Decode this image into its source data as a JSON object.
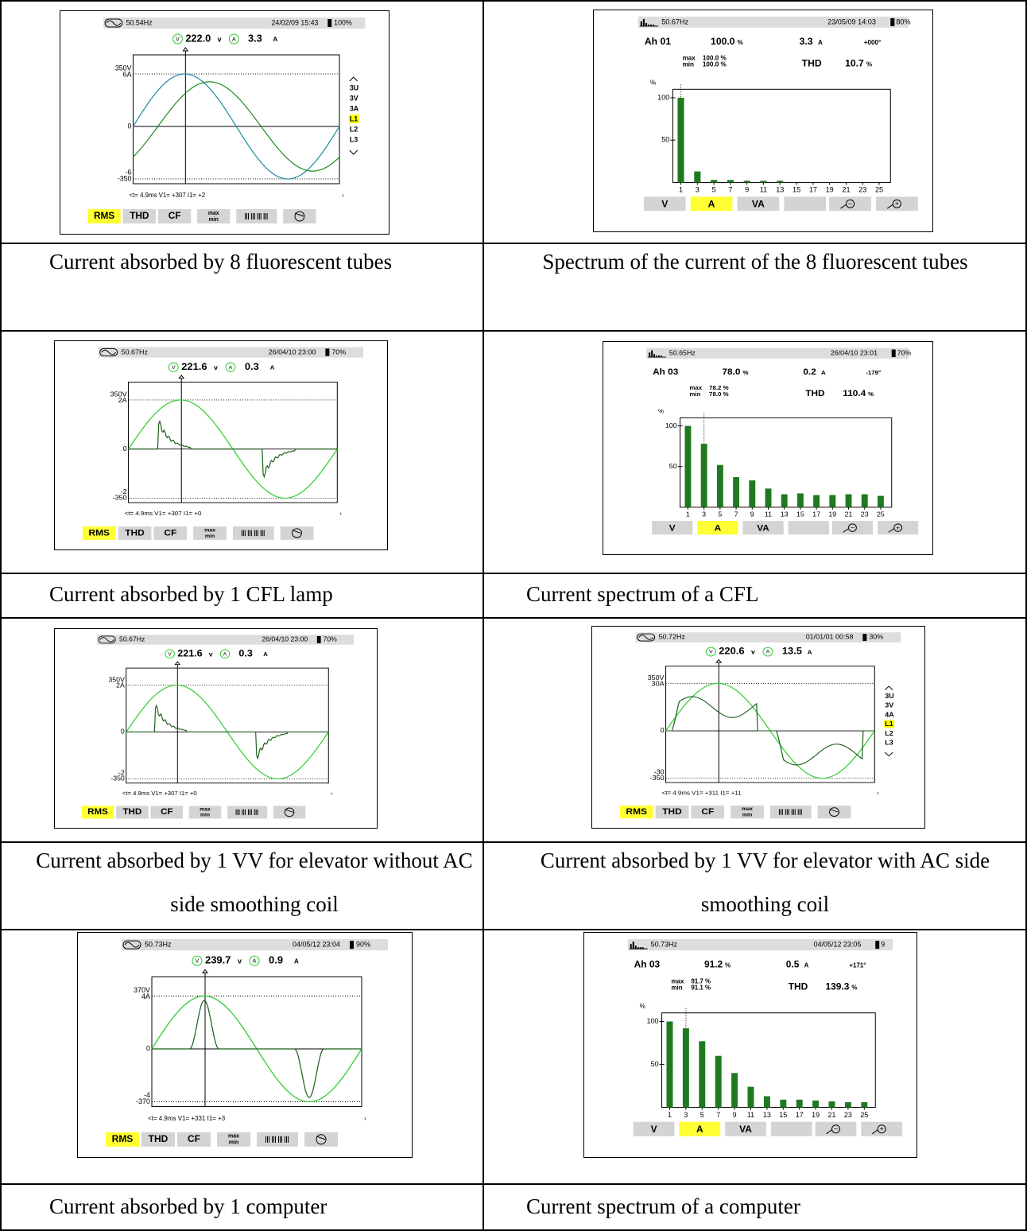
{
  "figures": [
    {
      "caption": "Current absorbed by 8 fluorescent tubes",
      "screen": {
        "kind": "waveform",
        "frequency": "50.54Hz",
        "datetime": "24/02/09 15:43",
        "battery": "100%",
        "voltage": "222.0",
        "voltage_unit": "v",
        "current": "3.3",
        "current_unit": "A",
        "y_labels": [
          "350V",
          "6A",
          "0",
          "-6",
          "-350"
        ],
        "cursor": "<t=  4.9ms   V1= +307   I1=    +2",
        "side_labels": [
          "3U",
          "3V",
          "3A",
          "L1",
          "L2",
          "L3"
        ],
        "buttons": [
          "RMS",
          "THD",
          "CF"
        ],
        "maxmin": [
          "max",
          "min"
        ]
      }
    },
    {
      "caption": "Spectrum of the current of the 8 fluorescent tubes",
      "screen": {
        "kind": "spectrum",
        "frequency": "50.67Hz",
        "datetime": "23/05/09 14:03",
        "battery": "80%",
        "harmonic": "Ah 01",
        "ratio": "100.0",
        "ratio_unit": "%",
        "current": "3.3",
        "current_unit": "A",
        "phase": "+000°",
        "max_label": "max",
        "max": "100.0 %",
        "min_label": "min",
        "min": "100.0 %",
        "thd_label": "THD",
        "thd": "10.7",
        "thd_unit": "%",
        "y_unit": "%",
        "buttons": [
          "V",
          "A",
          "VA"
        ],
        "chart": {
          "type": "bar",
          "categories": [
            "1",
            "3",
            "5",
            "7",
            "9",
            "11",
            "13",
            "15",
            "17",
            "19",
            "21",
            "23",
            "25"
          ],
          "values": [
            100,
            13,
            3,
            3,
            2,
            2,
            2,
            0,
            0,
            0,
            0,
            0,
            0
          ],
          "ylim": [
            0,
            110
          ],
          "yticks": [
            50,
            100
          ],
          "color": "#1f7a1f"
        }
      }
    },
    {
      "caption": "Current absorbed by 1 CFL lamp",
      "screen": {
        "kind": "waveform",
        "frequency": "50.67Hz",
        "datetime": "26/04/10 23:00",
        "battery": "70%",
        "voltage": "221.6",
        "voltage_unit": "v",
        "current": "0.3",
        "current_unit": "A",
        "y_labels": [
          "350V",
          "2A",
          "0",
          "-2",
          "-350"
        ],
        "cursor": "<t=  4.9ms   V1= +307   I1=    +0",
        "buttons": [
          "RMS",
          "THD",
          "CF"
        ],
        "maxmin": [
          "max",
          "min"
        ]
      }
    },
    {
      "caption": "Current spectrum of a CFL",
      "screen": {
        "kind": "spectrum",
        "frequency": "50.65Hz",
        "datetime": "26/04/10 23:01",
        "battery": "70%",
        "harmonic": "Ah 03",
        "ratio": "78.0",
        "ratio_unit": "%",
        "current": "0.2",
        "current_unit": "A",
        "phase": "-179°",
        "max_label": "max",
        "max": "78.2 %",
        "min_label": "min",
        "min": "78.0 %",
        "thd_label": "THD",
        "thd": "110.4",
        "thd_unit": "%",
        "y_unit": "%",
        "buttons": [
          "V",
          "A",
          "VA"
        ],
        "chart": {
          "type": "bar",
          "categories": [
            "1",
            "3",
            "5",
            "7",
            "9",
            "11",
            "13",
            "15",
            "17",
            "19",
            "21",
            "23",
            "25"
          ],
          "values": [
            100,
            78,
            52,
            37,
            33,
            23,
            16,
            17,
            15,
            15,
            16,
            16,
            14
          ],
          "ylim": [
            0,
            110
          ],
          "yticks": [
            50,
            100
          ],
          "color": "#1f7a1f"
        }
      }
    },
    {
      "caption": "Current absorbed by 1 VV for elevator without AC side smoothing coil",
      "screen": {
        "kind": "waveform",
        "frequency": "50.67Hz",
        "datetime": "26/04/10 23:00",
        "battery": "70%",
        "voltage": "221.6",
        "voltage_unit": "v",
        "current": "0.3",
        "current_unit": "A",
        "y_labels": [
          "350V",
          "2A",
          "0",
          "-2",
          "-350"
        ],
        "cursor": "<t=  4.9ms   V1= +307   I1=    +0",
        "buttons": [
          "RMS",
          "THD",
          "CF"
        ],
        "maxmin": [
          "max",
          "min"
        ]
      }
    },
    {
      "caption": "Current absorbed by 1 VV for elevator with AC side smoothing coil",
      "screen": {
        "kind": "waveform",
        "frequency": "50.72Hz",
        "datetime": "01/01/01  00:58",
        "battery": "30%",
        "voltage": "220.6",
        "voltage_unit": "v",
        "current": "13.5",
        "current_unit": "A",
        "y_labels": [
          "350V",
          "30A",
          "0",
          "-30",
          "-350"
        ],
        "cursor": "<t=  4.9ms   V1= +311   I1=   +11",
        "side_labels": [
          "3U",
          "3V",
          "4A",
          "L1",
          "L2",
          "L3"
        ],
        "buttons": [
          "RMS",
          "THD",
          "CF"
        ],
        "maxmin": [
          "max",
          "min"
        ]
      }
    },
    {
      "caption": "Current absorbed by 1 computer",
      "screen": {
        "kind": "waveform",
        "frequency": "50.73Hz",
        "datetime": "04/05/12 23:04",
        "battery": "90%",
        "voltage": "239.7",
        "voltage_unit": "v",
        "current": "0.9",
        "current_unit": "A",
        "y_labels": [
          "370V",
          "4A",
          "0",
          "-4",
          "-370"
        ],
        "cursor": "<t=  4.9ms   V1= +331   I1=    +3",
        "buttons": [
          "RMS",
          "THD",
          "CF"
        ],
        "maxmin": [
          "max",
          "min"
        ]
      }
    },
    {
      "caption": "Current spectrum of a computer",
      "screen": {
        "kind": "spectrum",
        "frequency": "50.73Hz",
        "datetime": "04/05/12 23:05",
        "battery": "9",
        "harmonic": "Ah 03",
        "ratio": "91.2",
        "ratio_unit": "%",
        "current": "0.5",
        "current_unit": "A",
        "phase": "+171°",
        "max_label": "max",
        "max": "91.7 %",
        "min_label": "min",
        "min": "91.1 %",
        "thd_label": "THD",
        "thd": "139.3",
        "thd_unit": "%",
        "y_unit": "%",
        "buttons": [
          "V",
          "A",
          "VA"
        ],
        "chart": {
          "type": "bar",
          "categories": [
            "1",
            "3",
            "5",
            "7",
            "9",
            "11",
            "13",
            "15",
            "17",
            "19",
            "21",
            "23",
            "25"
          ],
          "values": [
            100,
            92,
            77,
            60,
            40,
            24,
            13,
            9,
            9,
            8,
            7,
            6,
            6
          ],
          "ylim": [
            0,
            110
          ],
          "yticks": [
            50,
            100
          ],
          "color": "#1f7a1f"
        }
      }
    }
  ]
}
